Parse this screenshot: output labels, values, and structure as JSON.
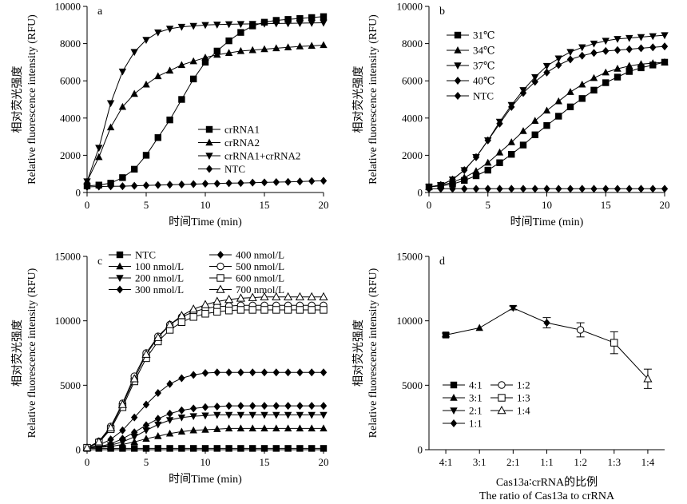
{
  "chart_data": [
    {
      "panel": "a",
      "type": "line",
      "x_label": "时间Time (min)",
      "y_label_cn": "相对荧光强度",
      "y_label_en": "Relative fluorescence intensity (RFU)",
      "xlim": [
        0,
        20
      ],
      "ylim": [
        0,
        10000
      ],
      "x_ticks": [
        0,
        5,
        10,
        15,
        20
      ],
      "y_ticks": [
        0,
        2000,
        4000,
        6000,
        8000,
        10000
      ],
      "legend_position": "center-right",
      "x": [
        0,
        1,
        2,
        3,
        4,
        5,
        6,
        7,
        8,
        9,
        10,
        11,
        12,
        13,
        14,
        15,
        16,
        17,
        18,
        19,
        20
      ],
      "series": [
        {
          "name": "crRNA1",
          "marker": "square",
          "values": [
            350,
            400,
            500,
            800,
            1250,
            2000,
            2950,
            3900,
            5000,
            6100,
            7000,
            7600,
            8150,
            8600,
            8950,
            9150,
            9250,
            9300,
            9350,
            9400,
            9450
          ]
        },
        {
          "name": "crRNA2",
          "marker": "triangle-up",
          "values": [
            600,
            1900,
            3500,
            4600,
            5300,
            5800,
            6250,
            6550,
            6850,
            7050,
            7250,
            7400,
            7500,
            7600,
            7650,
            7700,
            7750,
            7800,
            7850,
            7880,
            7920
          ]
        },
        {
          "name": "crRNA1+crRNA2",
          "marker": "triangle-down",
          "values": [
            600,
            2400,
            4800,
            6500,
            7550,
            8200,
            8600,
            8800,
            8900,
            8950,
            9000,
            9020,
            9040,
            9050,
            9060,
            9070,
            9080,
            9090,
            9100,
            9110,
            9120
          ]
        },
        {
          "name": "NTC",
          "marker": "diamond",
          "values": [
            300,
            320,
            330,
            340,
            360,
            380,
            400,
            420,
            430,
            450,
            470,
            480,
            500,
            510,
            530,
            540,
            560,
            570,
            590,
            610,
            630
          ]
        }
      ]
    },
    {
      "panel": "b",
      "type": "line",
      "x_label": "时间Time (min)",
      "y_label_cn": "相对荧光强度",
      "y_label_en": "Relative fluorescence intensity (RFU)",
      "xlim": [
        0,
        20
      ],
      "ylim": [
        0,
        10000
      ],
      "x_ticks": [
        0,
        5,
        10,
        15,
        20
      ],
      "y_ticks": [
        0,
        2000,
        4000,
        6000,
        8000,
        10000
      ],
      "legend_position": "top-left",
      "x": [
        0,
        1,
        2,
        3,
        4,
        5,
        6,
        7,
        8,
        9,
        10,
        11,
        12,
        13,
        14,
        15,
        16,
        17,
        18,
        19,
        20
      ],
      "series": [
        {
          "name": "31℃",
          "marker": "square",
          "values": [
            300,
            350,
            450,
            650,
            900,
            1200,
            1600,
            2050,
            2550,
            3100,
            3600,
            4100,
            4600,
            5050,
            5500,
            5900,
            6200,
            6500,
            6700,
            6850,
            7000
          ]
        },
        {
          "name": "34℃",
          "marker": "triangle-up",
          "values": [
            300,
            380,
            550,
            800,
            1150,
            1600,
            2150,
            2700,
            3300,
            3850,
            4400,
            4900,
            5400,
            5800,
            6150,
            6450,
            6650,
            6800,
            6900,
            6950,
            7000
          ]
        },
        {
          "name": "37℃",
          "marker": "triangle-down",
          "values": [
            300,
            400,
            700,
            1200,
            1900,
            2800,
            3800,
            4700,
            5500,
            6200,
            6800,
            7200,
            7550,
            7800,
            8000,
            8150,
            8250,
            8300,
            8350,
            8400,
            8450
          ]
        },
        {
          "name": "40℃",
          "marker": "diamond",
          "values": [
            300,
            400,
            700,
            1200,
            1900,
            2800,
            3700,
            4600,
            5350,
            5950,
            6450,
            6850,
            7150,
            7350,
            7500,
            7600,
            7650,
            7700,
            7750,
            7800,
            7850
          ]
        },
        {
          "name": "NTC",
          "marker": "diamond",
          "values": [
            200,
            200,
            200,
            200,
            200,
            200,
            200,
            200,
            200,
            200,
            200,
            200,
            200,
            200,
            200,
            200,
            200,
            200,
            200,
            200,
            200
          ]
        }
      ]
    },
    {
      "panel": "c",
      "type": "line",
      "x_label": "时间Time (min)",
      "y_label_cn": "相对荧光强度",
      "y_label_en": "Relative fluorescence intensity (RFU)",
      "xlim": [
        0,
        20
      ],
      "ylim": [
        0,
        15000
      ],
      "x_ticks": [
        0,
        5,
        10,
        15,
        20
      ],
      "y_ticks": [
        0,
        5000,
        10000,
        15000
      ],
      "legend_position": "top",
      "x": [
        0,
        1,
        2,
        3,
        4,
        5,
        6,
        7,
        8,
        9,
        10,
        11,
        12,
        13,
        14,
        15,
        16,
        17,
        18,
        19,
        20
      ],
      "series": [
        {
          "name": "NTC",
          "marker": "square",
          "values": [
            100,
            100,
            100,
            100,
            100,
            100,
            100,
            100,
            100,
            100,
            100,
            100,
            100,
            100,
            100,
            100,
            100,
            100,
            100,
            100,
            100
          ]
        },
        {
          "name": "100 nmol/L",
          "marker": "triangle-up",
          "values": [
            150,
            180,
            250,
            400,
            600,
            850,
            1050,
            1250,
            1400,
            1500,
            1550,
            1600,
            1650,
            1650,
            1650,
            1650,
            1650,
            1650,
            1650,
            1650,
            1650
          ]
        },
        {
          "name": "200 nmol/L",
          "marker": "triangle-down",
          "values": [
            150,
            200,
            350,
            600,
            1000,
            1500,
            1950,
            2300,
            2500,
            2600,
            2650,
            2700,
            2700,
            2700,
            2700,
            2700,
            2700,
            2700,
            2700,
            2700,
            2700
          ]
        },
        {
          "name": "300 nmol/L",
          "marker": "diamond",
          "values": [
            150,
            230,
            450,
            850,
            1350,
            1900,
            2400,
            2800,
            3050,
            3200,
            3300,
            3350,
            3400,
            3400,
            3400,
            3400,
            3400,
            3400,
            3400,
            3400,
            3400
          ]
        },
        {
          "name": "400 nmol/L",
          "marker": "diamond",
          "values": [
            150,
            350,
            800,
            1500,
            2500,
            3500,
            4400,
            5100,
            5550,
            5800,
            5950,
            6000,
            6000,
            6000,
            6000,
            6000,
            6000,
            6000,
            6000,
            6000,
            6000
          ]
        },
        {
          "name": "500 nmol/L",
          "marker": "circle",
          "values": [
            150,
            650,
            1800,
            3600,
            5700,
            7500,
            8800,
            9700,
            10300,
            10700,
            10950,
            11100,
            11150,
            11200,
            11200,
            11200,
            11200,
            11200,
            11200,
            11200,
            11200
          ]
        },
        {
          "name": "600 nmol/L",
          "marker": "square-open",
          "values": [
            150,
            550,
            1600,
            3300,
            5300,
            7100,
            8400,
            9300,
            9900,
            10300,
            10550,
            10700,
            10800,
            10850,
            10850,
            10850,
            10850,
            10850,
            10850,
            10850,
            10850
          ]
        },
        {
          "name": "700 nmol/L",
          "marker": "triangle-up-open",
          "values": [
            150,
            600,
            1700,
            3500,
            5500,
            7400,
            8700,
            9700,
            10400,
            10900,
            11250,
            11500,
            11650,
            11750,
            11800,
            11850,
            11850,
            11850,
            11850,
            11850,
            11850
          ]
        }
      ]
    },
    {
      "panel": "d",
      "type": "line",
      "x_label": "Cas13a∶crRNA的比例",
      "x_label_en": "The ratio of Cas13a to crRNA",
      "y_label_cn": "相对荧光强度",
      "y_label_en": "Relative fluorescence intensity (RFU)",
      "ylim": [
        0,
        15000
      ],
      "y_ticks": [
        0,
        5000,
        10000,
        15000
      ],
      "legend_position": "bottom-left",
      "categories": [
        "4:1",
        "3:1",
        "2:1",
        "1:1",
        "1:2",
        "1:3",
        "1:4"
      ],
      "series": [
        {
          "name": "4:1",
          "marker": "square",
          "value": 8900,
          "error": 150
        },
        {
          "name": "3:1",
          "marker": "triangle-up",
          "value": 9450,
          "error": 0
        },
        {
          "name": "2:1",
          "marker": "triangle-down",
          "value": 11000,
          "error": 150
        },
        {
          "name": "1:1",
          "marker": "diamond",
          "value": 9850,
          "error": 400
        },
        {
          "name": "1:2",
          "marker": "circle",
          "value": 9300,
          "error": 550
        },
        {
          "name": "1:3",
          "marker": "square-open",
          "value": 8300,
          "error": 850
        },
        {
          "name": "1:4",
          "marker": "triangle-up-open",
          "value": 5500,
          "error": 750
        }
      ]
    }
  ]
}
